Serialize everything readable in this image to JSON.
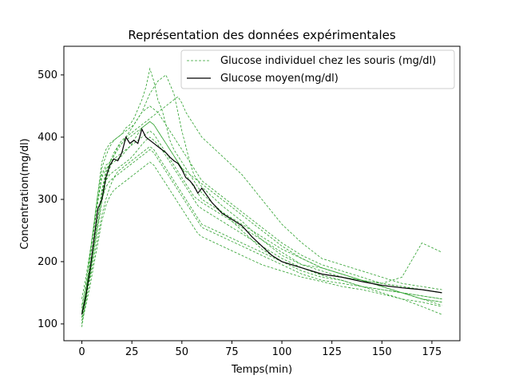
{
  "chart_data": {
    "type": "line",
    "title": "Représentation des données expérimentales",
    "xlabel": "Temps(min)",
    "ylabel": "Concentration(mg/dl)",
    "xlim": [
      -9,
      189
    ],
    "ylim": [
      73,
      546
    ],
    "xticks": [
      0,
      25,
      50,
      75,
      100,
      125,
      150,
      175
    ],
    "yticks": [
      100,
      200,
      300,
      400,
      500
    ],
    "grid": false,
    "legend_position": "top-right",
    "colors": {
      "individual": "#2ca02c",
      "mean": "#000000"
    },
    "series": [
      {
        "name": "Glucose individuel chez les souris (mg/dl)",
        "style": "dashed",
        "x": [
          0,
          2,
          4,
          6,
          8,
          10,
          12,
          14,
          16,
          18,
          20,
          22,
          24,
          26,
          28,
          30,
          32,
          34,
          36,
          38,
          40,
          42,
          44,
          46,
          48,
          50,
          52,
          54,
          56,
          58,
          60,
          70,
          80,
          90,
          100,
          110,
          120,
          130,
          140,
          150,
          160,
          170,
          180
        ],
        "values": [
          110,
          145,
          175,
          215,
          255,
          295,
          330,
          350,
          370,
          385,
          395,
          400,
          410,
          420,
          430,
          440,
          455,
          470,
          480,
          490,
          495,
          500,
          485,
          470,
          440,
          410,
          385,
          360,
          340,
          330,
          320,
          290,
          265,
          235,
          210,
          195,
          190,
          180,
          170,
          160,
          150,
          140,
          130
        ]
      },
      {
        "x": [
          0,
          2,
          4,
          6,
          8,
          10,
          12,
          14,
          16,
          18,
          20,
          22,
          24,
          26,
          28,
          30,
          32,
          34,
          36,
          38,
          40,
          42,
          44,
          46,
          48,
          50,
          52,
          54,
          56,
          58,
          60,
          70,
          80,
          90,
          100,
          110,
          120,
          130,
          140,
          150,
          160,
          170,
          180
        ],
        "values": [
          95,
          140,
          210,
          260,
          310,
          350,
          370,
          385,
          395,
          400,
          405,
          415,
          420,
          430,
          445,
          460,
          480,
          510,
          490,
          460,
          445,
          420,
          395,
          380,
          370,
          360,
          350,
          340,
          330,
          320,
          310,
          280,
          250,
          220,
          200,
          185,
          175,
          170,
          160,
          155,
          150,
          145,
          140
        ]
      },
      {
        "x": [
          0,
          2,
          4,
          6,
          8,
          10,
          12,
          14,
          16,
          18,
          20,
          22,
          24,
          26,
          28,
          30,
          32,
          34,
          36,
          38,
          40,
          42,
          44,
          46,
          48,
          50,
          52,
          54,
          56,
          58,
          60,
          70,
          80,
          90,
          100,
          110,
          120,
          130,
          140,
          150,
          160,
          170,
          180
        ],
        "values": [
          130,
          160,
          190,
          230,
          270,
          310,
          340,
          360,
          375,
          385,
          390,
          400,
          405,
          410,
          415,
          420,
          425,
          430,
          435,
          440,
          445,
          450,
          455,
          460,
          465,
          455,
          440,
          430,
          420,
          410,
          400,
          370,
          340,
          300,
          260,
          230,
          205,
          195,
          185,
          175,
          165,
          160,
          155
        ]
      },
      {
        "x": [
          0,
          2,
          4,
          6,
          8,
          10,
          12,
          14,
          16,
          18,
          20,
          22,
          24,
          26,
          28,
          30,
          32,
          34,
          36,
          38,
          40,
          42,
          44,
          46,
          48,
          50,
          52,
          54,
          56,
          58,
          60,
          70,
          80,
          90,
          100,
          110,
          120,
          130,
          140,
          150,
          160,
          170,
          180
        ],
        "values": [
          115,
          155,
          200,
          250,
          300,
          340,
          355,
          360,
          365,
          370,
          375,
          380,
          385,
          390,
          395,
          400,
          405,
          410,
          405,
          395,
          385,
          375,
          365,
          355,
          345,
          335,
          325,
          315,
          305,
          300,
          295,
          275,
          255,
          235,
          215,
          195,
          185,
          175,
          170,
          165,
          160,
          155,
          150
        ]
      },
      {
        "x": [
          0,
          2,
          4,
          6,
          8,
          10,
          12,
          14,
          16,
          18,
          20,
          22,
          24,
          26,
          28,
          30,
          32,
          34,
          36,
          38,
          40,
          42,
          44,
          46,
          48,
          50,
          52,
          54,
          56,
          58,
          60,
          70,
          80,
          90,
          100,
          110,
          120,
          130,
          140,
          150,
          160,
          170,
          180
        ],
        "values": [
          105,
          135,
          170,
          205,
          240,
          275,
          300,
          320,
          335,
          345,
          350,
          355,
          360,
          365,
          370,
          375,
          380,
          385,
          380,
          370,
          360,
          350,
          340,
          330,
          320,
          310,
          300,
          290,
          280,
          270,
          260,
          245,
          230,
          215,
          200,
          190,
          180,
          175,
          170,
          165,
          175,
          230,
          215
        ]
      },
      {
        "x": [
          0,
          2,
          4,
          6,
          8,
          10,
          12,
          14,
          16,
          18,
          20,
          22,
          24,
          26,
          28,
          30,
          32,
          34,
          36,
          38,
          40,
          42,
          44,
          46,
          48,
          50,
          52,
          54,
          56,
          58,
          60,
          70,
          80,
          90,
          100,
          110,
          120,
          130,
          140,
          150,
          160,
          170,
          180
        ],
        "values": [
          140,
          175,
          215,
          255,
          295,
          335,
          350,
          355,
          360,
          365,
          370,
          378,
          385,
          395,
          405,
          415,
          420,
          425,
          420,
          410,
          400,
          390,
          380,
          370,
          360,
          350,
          345,
          340,
          335,
          330,
          325,
          300,
          275,
          250,
          225,
          205,
          190,
          180,
          170,
          160,
          150,
          140,
          135
        ]
      },
      {
        "x": [
          0,
          2,
          4,
          6,
          8,
          10,
          12,
          14,
          16,
          18,
          20,
          22,
          24,
          26,
          28,
          30,
          32,
          34,
          36,
          38,
          40,
          42,
          44,
          46,
          48,
          50,
          52,
          54,
          56,
          58,
          60,
          70,
          80,
          90,
          100,
          110,
          120,
          130,
          140,
          150,
          160,
          170,
          180
        ],
        "values": [
          120,
          150,
          180,
          220,
          260,
          300,
          320,
          330,
          335,
          340,
          345,
          350,
          355,
          360,
          365,
          370,
          375,
          380,
          375,
          365,
          355,
          345,
          335,
          325,
          315,
          305,
          295,
          285,
          275,
          265,
          255,
          240,
          225,
          210,
          195,
          180,
          170,
          165,
          160,
          155,
          150,
          145,
          140
        ]
      },
      {
        "x": [
          0,
          2,
          4,
          6,
          8,
          10,
          12,
          14,
          16,
          18,
          20,
          22,
          24,
          26,
          28,
          30,
          32,
          34,
          36,
          38,
          40,
          42,
          44,
          46,
          48,
          50,
          52,
          54,
          56,
          58,
          60,
          70,
          80,
          90,
          100,
          110,
          120,
          130,
          140,
          150,
          160,
          170,
          180
        ],
        "values": [
          125,
          165,
          210,
          260,
          310,
          360,
          380,
          390,
          395,
          400,
          405,
          410,
          415,
          420,
          430,
          440,
          445,
          450,
          445,
          440,
          430,
          420,
          410,
          400,
          390,
          380,
          370,
          360,
          350,
          340,
          330,
          305,
          280,
          255,
          230,
          210,
          195,
          185,
          175,
          165,
          160,
          155,
          150
        ]
      },
      {
        "x": [
          0,
          2,
          4,
          6,
          8,
          10,
          12,
          14,
          16,
          18,
          20,
          22,
          24,
          26,
          28,
          30,
          32,
          34,
          36,
          38,
          40,
          42,
          44,
          46,
          48,
          50,
          52,
          54,
          56,
          58,
          60,
          70,
          80,
          90,
          100,
          110,
          120,
          130,
          140,
          150,
          160,
          170,
          180
        ],
        "values": [
          100,
          130,
          160,
          195,
          230,
          265,
          290,
          305,
          315,
          320,
          325,
          330,
          335,
          340,
          345,
          350,
          355,
          360,
          355,
          345,
          335,
          325,
          315,
          305,
          295,
          285,
          275,
          265,
          255,
          245,
          240,
          225,
          210,
          195,
          185,
          175,
          168,
          160,
          155,
          148,
          140,
          135,
          128
        ]
      },
      {
        "x": [
          0,
          2,
          4,
          6,
          8,
          10,
          12,
          14,
          16,
          18,
          20,
          22,
          24,
          26,
          28,
          30,
          32,
          34,
          36,
          38,
          40,
          42,
          44,
          46,
          48,
          50,
          52,
          54,
          56,
          58,
          60,
          70,
          80,
          90,
          100,
          110,
          120,
          130,
          140,
          150,
          160,
          170,
          180
        ],
        "values": [
          110,
          140,
          180,
          225,
          270,
          315,
          345,
          360,
          370,
          380,
          390,
          395,
          400,
          405,
          410,
          415,
          420,
          425,
          420,
          410,
          400,
          390,
          380,
          370,
          360,
          350,
          340,
          330,
          320,
          310,
          300,
          280,
          260,
          240,
          220,
          205,
          190,
          180,
          170,
          160,
          150,
          140,
          135
        ]
      },
      {
        "x": [
          0,
          2,
          4,
          6,
          8,
          10,
          12,
          14,
          16,
          18,
          20,
          22,
          24,
          26,
          28,
          30,
          32,
          34,
          36,
          38,
          40,
          42,
          44,
          46,
          48,
          50,
          52,
          54,
          56,
          58,
          60,
          70,
          80,
          90,
          100,
          110,
          120,
          130,
          140,
          150,
          160,
          170,
          180
        ],
        "values": [
          118,
          150,
          190,
          230,
          270,
          310,
          330,
          340,
          345,
          350,
          355,
          360,
          365,
          372,
          380,
          388,
          395,
          400,
          395,
          388,
          380,
          370,
          360,
          350,
          340,
          330,
          320,
          310,
          300,
          290,
          285,
          265,
          245,
          225,
          205,
          190,
          178,
          170,
          160,
          150,
          140,
          128,
          115
        ]
      },
      {
        "name": "Glucose moyen(mg/dl)",
        "style": "solid",
        "x": [
          0,
          2,
          4,
          6,
          8,
          10,
          12,
          14,
          16,
          18,
          20,
          22,
          24,
          26,
          28,
          30,
          32,
          34,
          36,
          38,
          40,
          42,
          44,
          46,
          48,
          50,
          52,
          54,
          56,
          58,
          60,
          65,
          70,
          75,
          80,
          85,
          90,
          95,
          100,
          110,
          120,
          130,
          140,
          150,
          160,
          170,
          180
        ],
        "values": [
          115,
          145,
          185,
          235,
          285,
          300,
          335,
          355,
          365,
          362,
          375,
          400,
          390,
          395,
          390,
          413,
          400,
          395,
          390,
          385,
          380,
          375,
          368,
          362,
          358,
          348,
          335,
          330,
          322,
          310,
          318,
          295,
          278,
          268,
          258,
          240,
          225,
          210,
          200,
          190,
          180,
          175,
          168,
          162,
          158,
          155,
          150
        ]
      }
    ]
  }
}
